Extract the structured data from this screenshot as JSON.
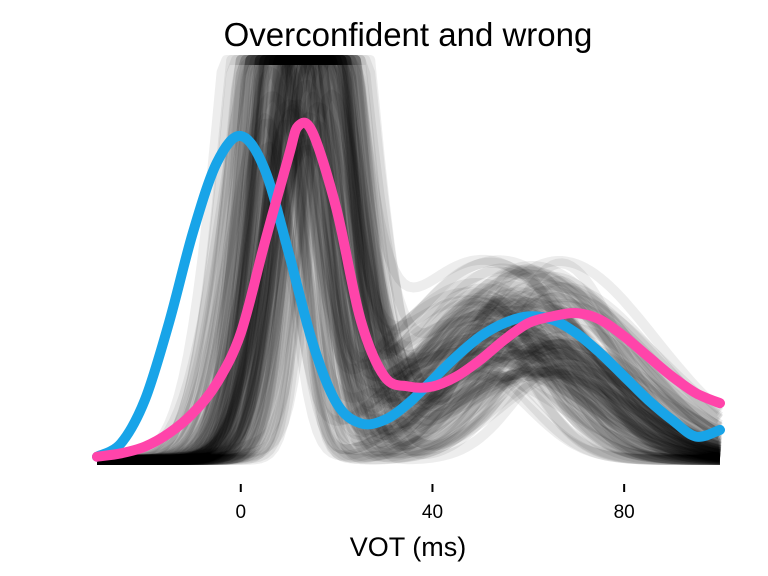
{
  "chart_data": {
    "type": "line",
    "title": "Overconfident and wrong",
    "xlabel": "VOT (ms)",
    "ylabel": "",
    "xlim": [
      -30,
      100
    ],
    "ylim": [
      0,
      1
    ],
    "xticks": [
      0,
      40,
      80
    ],
    "grid": false,
    "legend": "none",
    "y_axis_shown": false,
    "series": [
      {
        "color": "#18a4e8",
        "x": [
          -30,
          -25,
          -20,
          -15,
          -10,
          -5,
          0,
          5,
          10,
          15,
          20,
          25,
          30,
          35,
          40,
          45,
          50,
          55,
          60,
          65,
          70,
          75,
          80,
          85,
          90,
          95,
          100
        ],
        "y": [
          0.01,
          0.05,
          0.18,
          0.41,
          0.68,
          0.89,
          0.97,
          0.87,
          0.62,
          0.35,
          0.17,
          0.11,
          0.12,
          0.17,
          0.24,
          0.31,
          0.37,
          0.41,
          0.43,
          0.42,
          0.38,
          0.32,
          0.25,
          0.18,
          0.12,
          0.07,
          0.09
        ]
      },
      {
        "color": "#ff44aa",
        "x": [
          -30,
          -25,
          -20,
          -15,
          -10,
          -5,
          0,
          5,
          10,
          12,
          15,
          20,
          25,
          30,
          35,
          40,
          45,
          50,
          55,
          60,
          65,
          70,
          75,
          80,
          85,
          90,
          95,
          100
        ],
        "y": [
          0.01,
          0.02,
          0.04,
          0.08,
          0.14,
          0.23,
          0.38,
          0.65,
          0.91,
          1.0,
          0.98,
          0.75,
          0.42,
          0.25,
          0.22,
          0.22,
          0.25,
          0.3,
          0.36,
          0.41,
          0.43,
          0.44,
          0.42,
          0.37,
          0.31,
          0.25,
          0.2,
          0.17
        ]
      }
    ]
  }
}
